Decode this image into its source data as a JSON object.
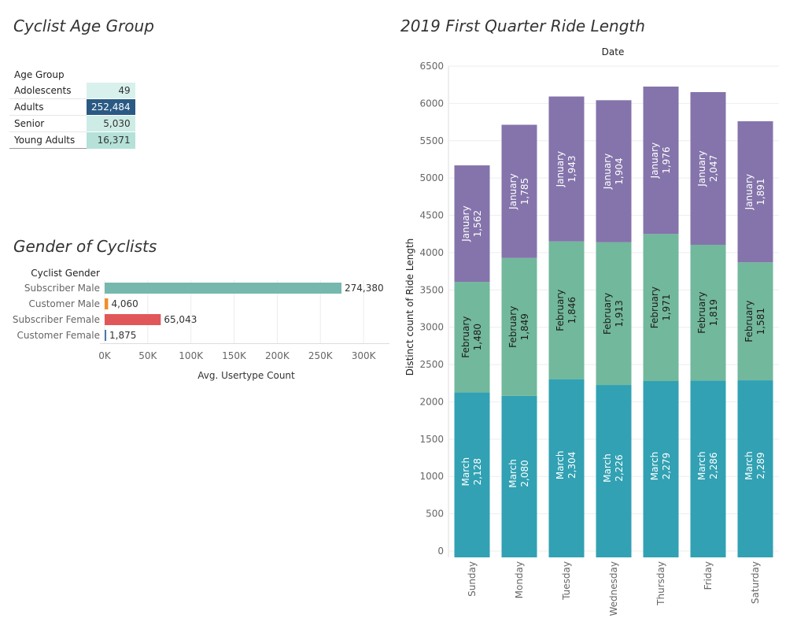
{
  "age_table": {
    "title": "Cyclist Age Group",
    "column_header": "Age Group",
    "rows": [
      {
        "label": "Adolescents",
        "value": "49",
        "bg": "#d8f1ec",
        "fg": "#333333"
      },
      {
        "label": "Adults",
        "value": "252,484",
        "bg": "#2a5a84",
        "fg": "#ffffff"
      },
      {
        "label": "Senior",
        "value": "5,030",
        "bg": "#cdece5",
        "fg": "#333333"
      },
      {
        "label": "Young Adults",
        "value": "16,371",
        "bg": "#b5e1d9",
        "fg": "#333333"
      }
    ]
  },
  "chart_data": [
    {
      "type": "bar",
      "orientation": "horizontal",
      "title": "Gender of Cyclists",
      "category_header": "Cyclist Gender",
      "xlabel": "Avg. Usertype Count",
      "categories": [
        "Subscriber Male",
        "Customer Male",
        "Subscriber Female",
        "Customer Female"
      ],
      "values": [
        274380,
        4060,
        65043,
        1875
      ],
      "value_labels": [
        "274,380",
        "4,060",
        "65,043",
        "1,875"
      ],
      "colors": [
        "#76b8ad",
        "#f28e2b",
        "#e15759",
        "#4e79a7"
      ],
      "xlim": [
        0,
        330000
      ],
      "xticks": [
        0,
        50000,
        100000,
        150000,
        200000,
        250000,
        300000
      ],
      "xtick_labels": [
        "0K",
        "50K",
        "100K",
        "150K",
        "200K",
        "250K",
        "300K"
      ],
      "grid": true
    },
    {
      "type": "bar",
      "stacked": true,
      "title": "2019 First Quarter Ride Length",
      "column_header": "Date",
      "ylabel": "Distinct count of Ride Length",
      "categories": [
        "Sunday",
        "Monday",
        "Tuesday",
        "Wednesday",
        "Thursday",
        "Friday",
        "Saturday"
      ],
      "ylim": [
        0,
        6500
      ],
      "yticks": [
        0,
        500,
        1000,
        1500,
        2000,
        2500,
        3000,
        3500,
        4000,
        4500,
        5000,
        5500,
        6000,
        6500
      ],
      "series": [
        {
          "name": "March",
          "values": [
            2128,
            2080,
            2304,
            2226,
            2279,
            2286,
            2289
          ],
          "labels": [
            "2,128",
            "2,080",
            "2,304",
            "2,226",
            "2,279",
            "2,286",
            "2,289"
          ],
          "color": "#31a1b3",
          "label_color": "#ffffff"
        },
        {
          "name": "February",
          "values": [
            1480,
            1849,
            1846,
            1913,
            1971,
            1819,
            1581
          ],
          "labels": [
            "1,480",
            "1,849",
            "1,846",
            "1,913",
            "1,971",
            "1,819",
            "1,581"
          ],
          "color": "#72b89c",
          "label_color": "#1c1c1c"
        },
        {
          "name": "January",
          "values": [
            1562,
            1785,
            1943,
            1904,
            1976,
            2047,
            1891
          ],
          "labels": [
            "1,562",
            "1,785",
            "1,943",
            "1,904",
            "1,976",
            "2,047",
            "1,891"
          ],
          "color": "#8474ab",
          "label_color": "#ffffff"
        }
      ],
      "grid": true
    }
  ]
}
